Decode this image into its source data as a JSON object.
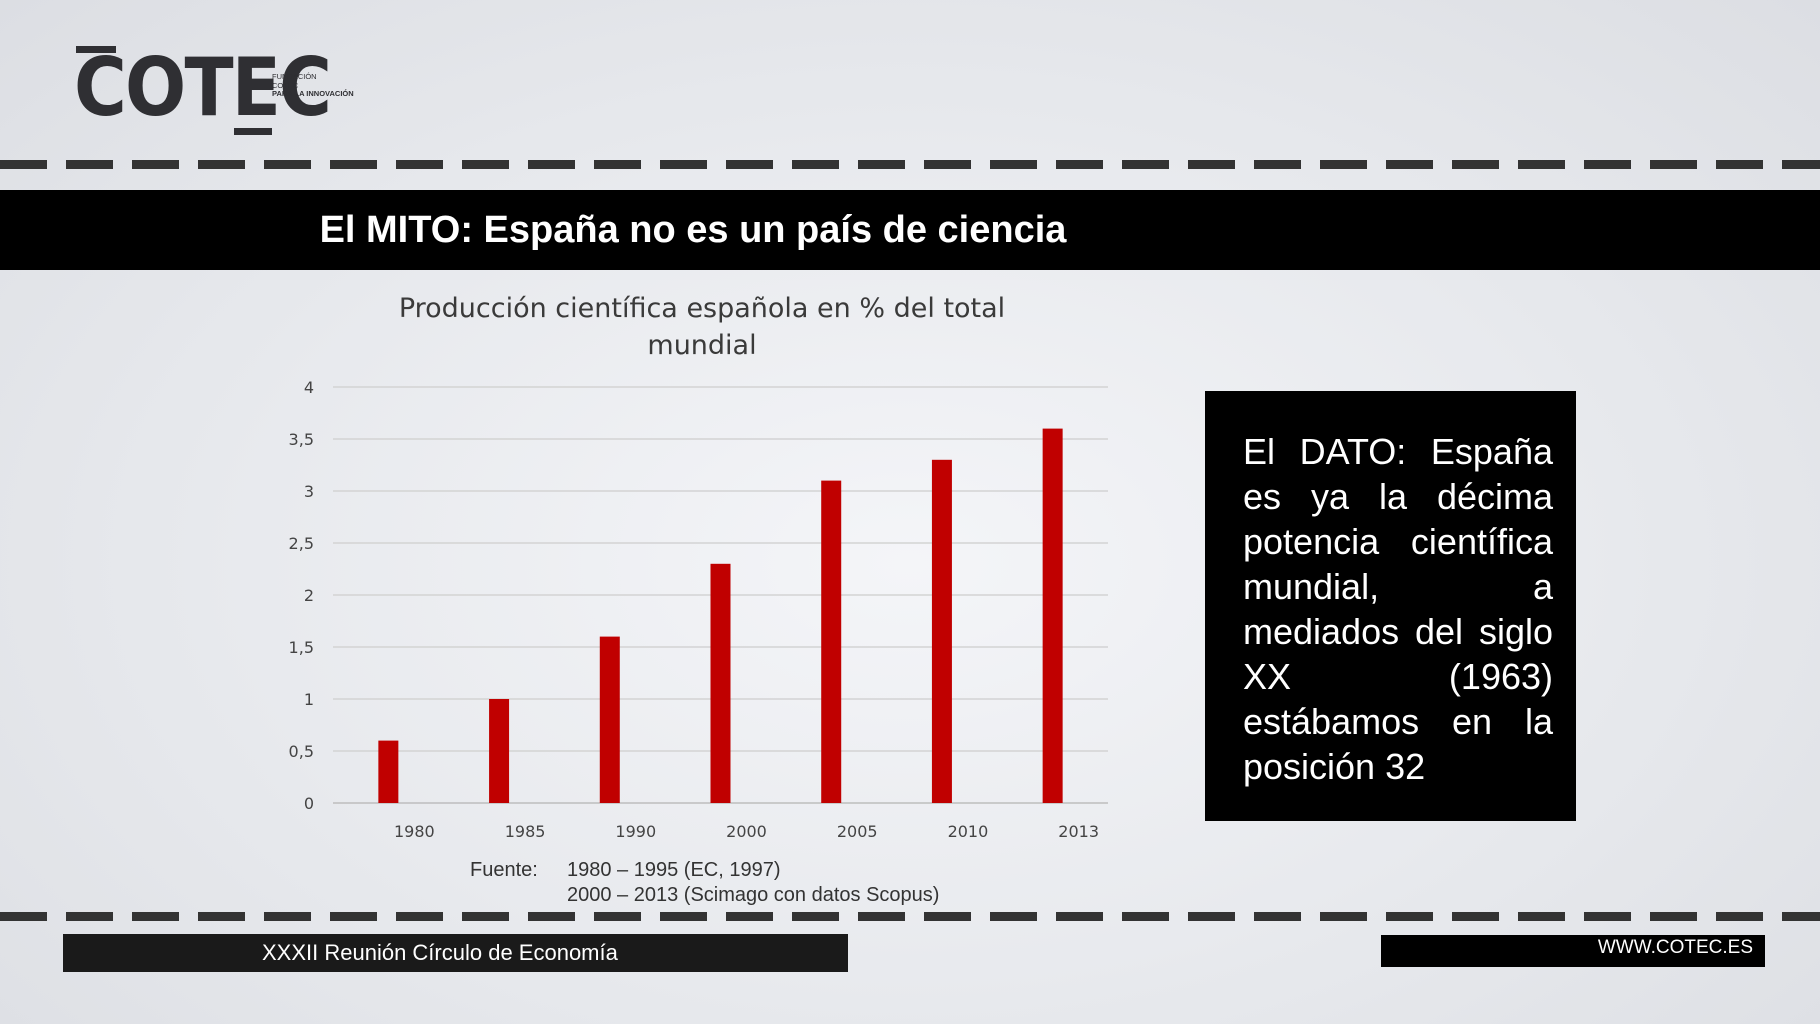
{
  "logo": {
    "word": "COTEC",
    "tagline_1": "FUNDACIÓN",
    "tagline_2": "COTEC",
    "tagline_3": "PARA LA INNOVACIÓN"
  },
  "slide_title": "El MITO: España no es un país de ciencia",
  "chart_data": {
    "type": "bar",
    "title_line1": "Producción científica española en % del total",
    "title_line2": "mundial",
    "categories": [
      "1980",
      "1985",
      "1990",
      "2000",
      "2005",
      "2010",
      "2013"
    ],
    "values": [
      0.6,
      1.0,
      1.6,
      2.3,
      3.1,
      3.3,
      3.6
    ],
    "yticks": [
      "0",
      "0,5",
      "1",
      "1,5",
      "2",
      "2,5",
      "3",
      "3,5",
      "4"
    ],
    "ylim": [
      0,
      4
    ],
    "grid": true,
    "bar_color": "#c00000",
    "source": {
      "label": "Fuente:",
      "line1": "1980 – 1995 (EC, 1997)",
      "line2": "2000 – 2013 (Scimago con datos Scopus)"
    }
  },
  "dato": "El DATO: España es ya la décima potencia científica mundial, a mediados del siglo XX (1963) estábamos en la posición 32",
  "footer": {
    "left": "XXXII Reunión Círculo de Economía",
    "right": "WWW.COTEC.ES"
  }
}
